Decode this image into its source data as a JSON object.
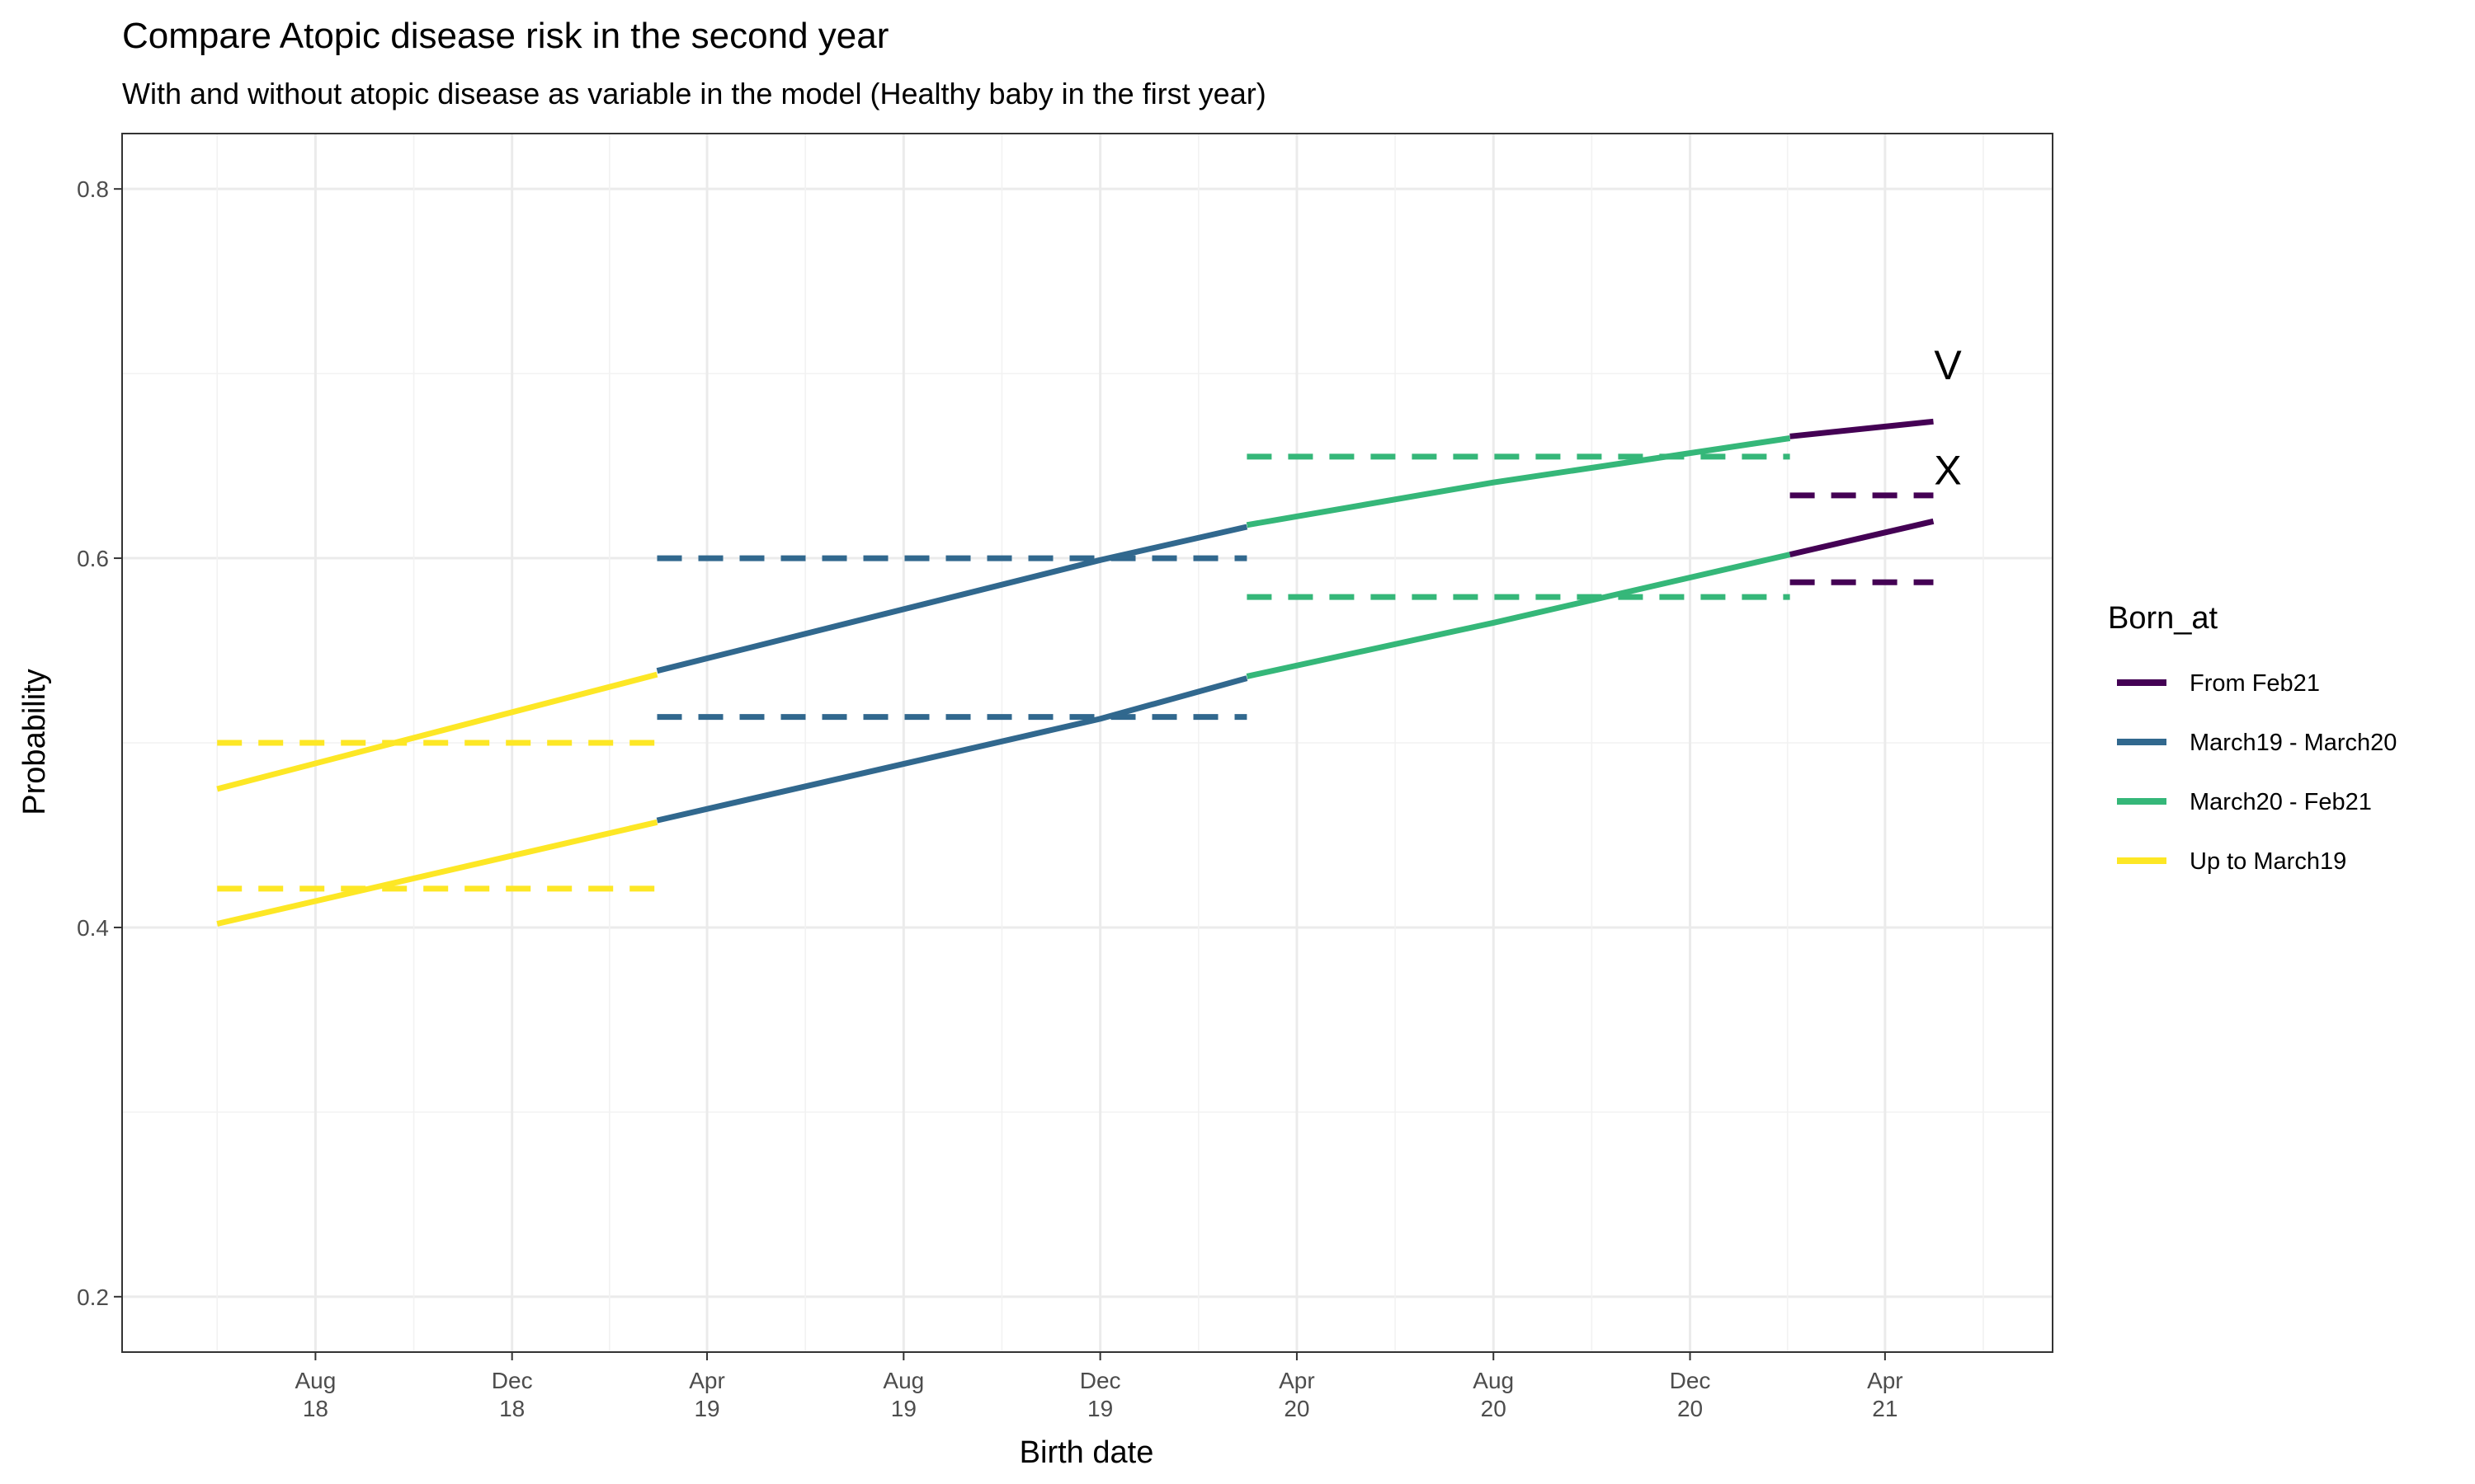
{
  "chart_data": {
    "type": "line",
    "title": "Compare Atopic disease risk in the second year",
    "subtitle": "With and without atopic disease as variable in the model (Healthy baby in the first year)",
    "xlabel": "Birth date",
    "ylabel": "Probability",
    "ylim": [
      0.17,
      0.83
    ],
    "xlim": [
      "2018-04-03",
      "2021-07-14"
    ],
    "y_ticks": [
      0.2,
      0.4,
      0.6,
      0.8
    ],
    "y_tick_labels": [
      "0.2",
      "0.4",
      "0.6",
      "0.8"
    ],
    "x_ticks": [
      {
        "date": "2018-08-01",
        "line1": "Aug",
        "line2": "18"
      },
      {
        "date": "2018-12-01",
        "line1": "Dec",
        "line2": "18"
      },
      {
        "date": "2019-04-01",
        "line1": "Apr",
        "line2": "19"
      },
      {
        "date": "2019-08-01",
        "line1": "Aug",
        "line2": "19"
      },
      {
        "date": "2019-12-01",
        "line1": "Dec",
        "line2": "19"
      },
      {
        "date": "2020-04-01",
        "line1": "Apr",
        "line2": "20"
      },
      {
        "date": "2020-08-01",
        "line1": "Aug",
        "line2": "20"
      },
      {
        "date": "2020-12-01",
        "line1": "Dec",
        "line2": "20"
      },
      {
        "date": "2021-04-01",
        "line1": "Apr",
        "line2": "21"
      }
    ],
    "grid": true,
    "legend": {
      "title": "Born_at",
      "position": "right",
      "entries": [
        {
          "label": "From Feb21",
          "color": "#440154"
        },
        {
          "label": "March19 - March20",
          "color": "#31688E"
        },
        {
          "label": "March20 - Feb21",
          "color": "#35B779"
        },
        {
          "label": "Up to March19",
          "color": "#FDE725"
        }
      ]
    },
    "series": [
      {
        "group": "Up to March19",
        "color": "#FDE725",
        "style": "solid",
        "x": [
          "2018-06-01",
          "2019-03-01"
        ],
        "y": [
          0.475,
          0.537
        ]
      },
      {
        "group": "Up to March19",
        "color": "#FDE725",
        "style": "solid",
        "x": [
          "2018-06-01",
          "2019-03-01"
        ],
        "y": [
          0.402,
          0.457
        ]
      },
      {
        "group": "Up to March19",
        "color": "#FDE725",
        "style": "dashed",
        "x": [
          "2018-06-01",
          "2019-03-01"
        ],
        "y": [
          0.5,
          0.5
        ]
      },
      {
        "group": "Up to March19",
        "color": "#FDE725",
        "style": "dashed",
        "x": [
          "2018-06-01",
          "2019-03-01"
        ],
        "y": [
          0.421,
          0.421
        ]
      },
      {
        "group": "March19 - March20",
        "color": "#31688E",
        "style": "solid",
        "x": [
          "2019-03-01",
          "2019-12-01",
          "2020-03-01"
        ],
        "y": [
          0.539,
          0.599,
          0.617
        ]
      },
      {
        "group": "March19 - March20",
        "color": "#31688E",
        "style": "solid",
        "x": [
          "2019-03-01",
          "2019-12-01",
          "2020-03-01"
        ],
        "y": [
          0.458,
          0.513,
          0.535
        ]
      },
      {
        "group": "March19 - March20",
        "color": "#31688E",
        "style": "dashed",
        "x": [
          "2019-03-01",
          "2020-03-01"
        ],
        "y": [
          0.6,
          0.6
        ]
      },
      {
        "group": "March19 - March20",
        "color": "#31688E",
        "style": "dashed",
        "x": [
          "2019-03-01",
          "2020-03-01"
        ],
        "y": [
          0.514,
          0.514
        ]
      },
      {
        "group": "March20 - Feb21",
        "color": "#35B779",
        "style": "solid",
        "x": [
          "2020-03-01",
          "2020-08-01",
          "2021-02-01"
        ],
        "y": [
          0.618,
          0.641,
          0.665
        ]
      },
      {
        "group": "March20 - Feb21",
        "color": "#35B779",
        "style": "solid",
        "x": [
          "2020-03-01",
          "2020-08-01",
          "2021-02-01"
        ],
        "y": [
          0.536,
          0.565,
          0.602
        ]
      },
      {
        "group": "March20 - Feb21",
        "color": "#35B779",
        "style": "dashed",
        "x": [
          "2020-03-01",
          "2021-02-01"
        ],
        "y": [
          0.655,
          0.655
        ]
      },
      {
        "group": "March20 - Feb21",
        "color": "#35B779",
        "style": "dashed",
        "x": [
          "2020-03-01",
          "2021-02-01"
        ],
        "y": [
          0.579,
          0.579
        ]
      },
      {
        "group": "From Feb21",
        "color": "#440154",
        "style": "solid",
        "x": [
          "2021-02-01",
          "2021-05-01"
        ],
        "y": [
          0.666,
          0.674
        ]
      },
      {
        "group": "From Feb21",
        "color": "#440154",
        "style": "solid",
        "x": [
          "2021-02-01",
          "2021-05-01"
        ],
        "y": [
          0.602,
          0.62
        ]
      },
      {
        "group": "From Feb21",
        "color": "#440154",
        "style": "dashed",
        "x": [
          "2021-02-01",
          "2021-05-01"
        ],
        "y": [
          0.634,
          0.634
        ]
      },
      {
        "group": "From Feb21",
        "color": "#440154",
        "style": "dashed",
        "x": [
          "2021-02-01",
          "2021-05-01"
        ],
        "y": [
          0.587,
          0.587
        ]
      }
    ],
    "annotations": [
      {
        "text": "V",
        "x": "2021-05-10",
        "y": 0.697
      },
      {
        "text": "X",
        "x": "2021-05-10",
        "y": 0.64
      }
    ]
  }
}
